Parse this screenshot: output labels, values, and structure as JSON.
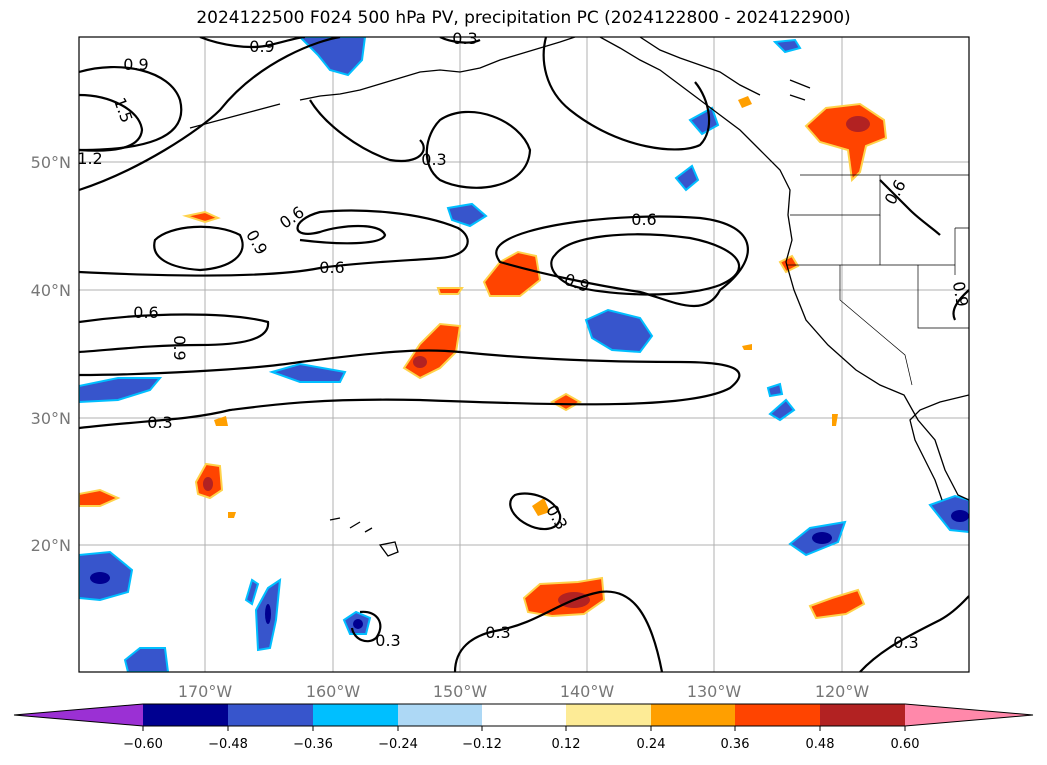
{
  "title": "2024122500 F024 500 hPa PV, precipitation PC (2024122800 - 2024122900)",
  "map": {
    "lat_labels": [
      "50°N",
      "40°N",
      "30°N",
      "20°N"
    ],
    "lon_labels": [
      "170°W",
      "160°W",
      "150°W",
      "140°W",
      "130°W",
      "120°W"
    ],
    "contour_labels": [
      "0.9",
      "1.5",
      "1.2",
      "0.3",
      "0.3",
      "0.9",
      "0.9",
      "0.6",
      "0.6",
      "0.9",
      "0.6",
      "0.9",
      "0.6",
      "0.3",
      "0.3",
      "0.3",
      "0.3",
      "0.3",
      "0.6",
      "0.9"
    ],
    "contour_color": "#000000",
    "coast_color": "#000000",
    "grid_color": "#b0b0b0"
  },
  "colorbar": {
    "colors": [
      "#9b30d4",
      "#000090",
      "#3755cc",
      "#00bfff",
      "#add8f5",
      "#ffffff",
      "#fdeb96",
      "#ff9f00",
      "#ff4400",
      "#b22222",
      "#ff88aa"
    ],
    "ticks": [
      "−0.60",
      "−0.48",
      "−0.36",
      "−0.24",
      "−0.12",
      "0.12",
      "0.24",
      "0.36",
      "0.48",
      "0.60"
    ]
  }
}
